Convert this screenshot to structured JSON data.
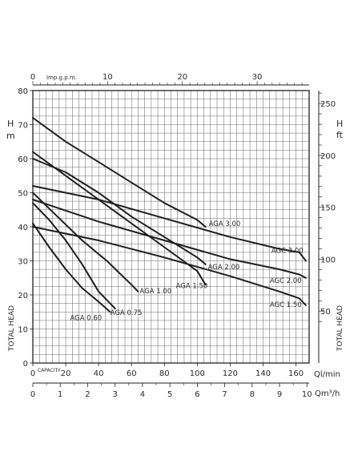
{
  "chart_data": {
    "type": "line",
    "xlabel": "Ql/min",
    "ylabel_left": "TOTAL HEAD",
    "ylabel_left_unit": "H m",
    "ylabel_right": "TOTAL HEAD",
    "ylabel_right_unit": "H ft",
    "capacity_label": "CAPACITY",
    "x_top_label": "Imp.g.p.m.",
    "x_bottom2_label": "Qm³/h",
    "xlim": [
      0,
      168
    ],
    "ylim": [
      0,
      80
    ],
    "grid": true,
    "x_ticks": [
      0,
      20,
      40,
      60,
      80,
      100,
      120,
      140,
      160
    ],
    "y_ticks": [
      0,
      10,
      20,
      30,
      40,
      50,
      60,
      70,
      80
    ],
    "top_ticks": [
      0,
      10,
      20,
      30
    ],
    "right_ticks": [
      50,
      100,
      150,
      200,
      250
    ],
    "m3h_ticks": [
      0,
      1,
      2,
      3,
      4,
      5,
      6,
      7,
      8,
      9,
      10
    ],
    "series": [
      {
        "name": "AGA 0.60",
        "x": [
          0,
          10,
          20,
          30,
          40,
          47
        ],
        "y": [
          41,
          34,
          27.5,
          22,
          18,
          15
        ]
      },
      {
        "name": "AGA 0.75",
        "x": [
          0,
          10,
          20,
          30,
          40,
          50
        ],
        "y": [
          47,
          42,
          36,
          29,
          21,
          16
        ]
      },
      {
        "name": "AGA 1.00",
        "x": [
          0,
          15,
          30,
          45,
          60,
          64
        ],
        "y": [
          50,
          43,
          36,
          30,
          23,
          21
        ]
      },
      {
        "name": "AGA 1.50",
        "x": [
          0,
          20,
          40,
          60,
          80,
          100,
          105
        ],
        "y": [
          62,
          55,
          48,
          41,
          34,
          27,
          23
        ]
      },
      {
        "name": "AGA 2.00",
        "x": [
          0,
          20,
          40,
          60,
          80,
          100,
          105
        ],
        "y": [
          60,
          56,
          50,
          43,
          37,
          31,
          29
        ]
      },
      {
        "name": "AGA 3.00",
        "x": [
          0,
          20,
          40,
          60,
          80,
          100,
          105
        ],
        "y": [
          72,
          65,
          59,
          53,
          47,
          42,
          40
        ]
      },
      {
        "name": "AGC 1.50",
        "x": [
          0,
          40,
          80,
          120,
          150,
          162,
          166
        ],
        "y": [
          40,
          36,
          31,
          25.5,
          21,
          19,
          17
        ]
      },
      {
        "name": "AGC 2.00",
        "x": [
          0,
          40,
          80,
          120,
          150,
          162,
          166
        ],
        "y": [
          48,
          41.5,
          36,
          30.5,
          27.5,
          26,
          25
        ]
      },
      {
        "name": "AGC 3.00",
        "x": [
          0,
          40,
          80,
          120,
          150,
          162,
          166
        ],
        "y": [
          52,
          48,
          42.5,
          37,
          33.5,
          32.5,
          30
        ]
      }
    ]
  }
}
